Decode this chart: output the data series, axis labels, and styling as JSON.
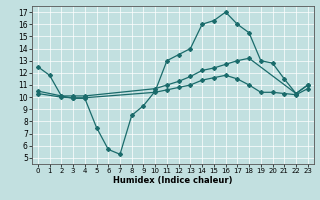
{
  "title": "",
  "xlabel": "Humidex (Indice chaleur)",
  "bg_color": "#c2e0e0",
  "line_color": "#1a6b6b",
  "xlim": [
    -0.5,
    23.5
  ],
  "ylim": [
    4.5,
    17.5
  ],
  "xticks": [
    0,
    1,
    2,
    3,
    4,
    5,
    6,
    7,
    8,
    9,
    10,
    11,
    12,
    13,
    14,
    15,
    16,
    17,
    18,
    19,
    20,
    21,
    22,
    23
  ],
  "yticks": [
    5,
    6,
    7,
    8,
    9,
    10,
    11,
    12,
    13,
    14,
    15,
    16,
    17
  ],
  "line1_x": [
    0,
    1,
    2,
    3,
    4,
    5,
    6,
    7,
    8,
    9,
    10,
    11,
    12,
    13,
    14,
    15,
    16,
    17,
    18,
    19,
    20,
    21,
    22,
    23
  ],
  "line1_y": [
    12.5,
    11.8,
    10.1,
    9.9,
    9.9,
    7.5,
    5.7,
    5.3,
    8.5,
    9.3,
    10.5,
    13.0,
    13.5,
    14.0,
    16.0,
    16.3,
    17.0,
    16.0,
    15.3,
    13.0,
    12.8,
    11.5,
    10.3,
    11.0
  ],
  "line2_x": [
    0,
    2,
    3,
    4,
    10,
    11,
    12,
    13,
    14,
    15,
    16,
    17,
    18,
    22,
    23
  ],
  "line2_y": [
    10.5,
    10.1,
    10.1,
    10.1,
    10.7,
    11.0,
    11.3,
    11.7,
    12.2,
    12.4,
    12.7,
    13.0,
    13.2,
    10.3,
    11.0
  ],
  "line3_x": [
    0,
    2,
    3,
    4,
    10,
    11,
    12,
    13,
    14,
    15,
    16,
    17,
    18,
    19,
    20,
    21,
    22,
    23
  ],
  "line3_y": [
    10.3,
    10.0,
    9.95,
    9.95,
    10.4,
    10.6,
    10.8,
    11.0,
    11.4,
    11.6,
    11.8,
    11.5,
    11.0,
    10.4,
    10.4,
    10.3,
    10.2,
    10.7
  ]
}
